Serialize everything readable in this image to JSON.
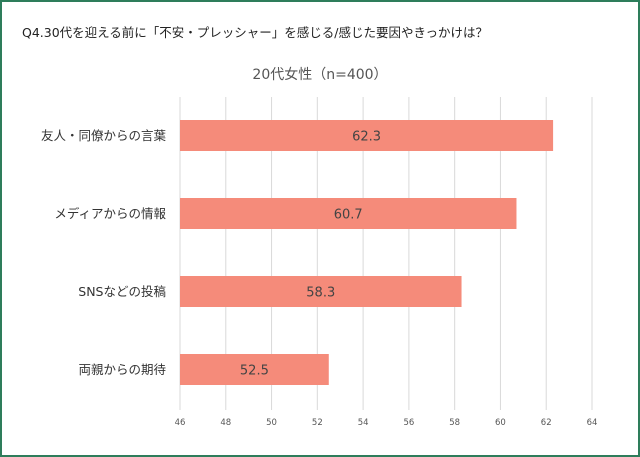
{
  "question": "Q4.30代を迎える前に「不安・プレッシャー」を感じる/感じた要因やきっかけは？",
  "colors": {
    "bar": "#f58b7a",
    "frame": "#2e7d5b",
    "grid": "#d9d9d9"
  },
  "chart_data": {
    "type": "bar",
    "orientation": "horizontal",
    "title": "20代女性（n=400）",
    "categories": [
      "友人・同僚からの言葉",
      "メディアからの情報",
      "SNSなどの投稿",
      "両親からの期待"
    ],
    "values": [
      62.3,
      60.7,
      58.3,
      52.5
    ],
    "data_labels": [
      "62.3",
      "60.7",
      "58.3",
      "52.5"
    ],
    "xlim": [
      46,
      64
    ],
    "ticks": [
      "46",
      "48",
      "50",
      "52",
      "54",
      "56",
      "58",
      "60",
      "62",
      "64"
    ],
    "grid": true,
    "legend": "none"
  }
}
